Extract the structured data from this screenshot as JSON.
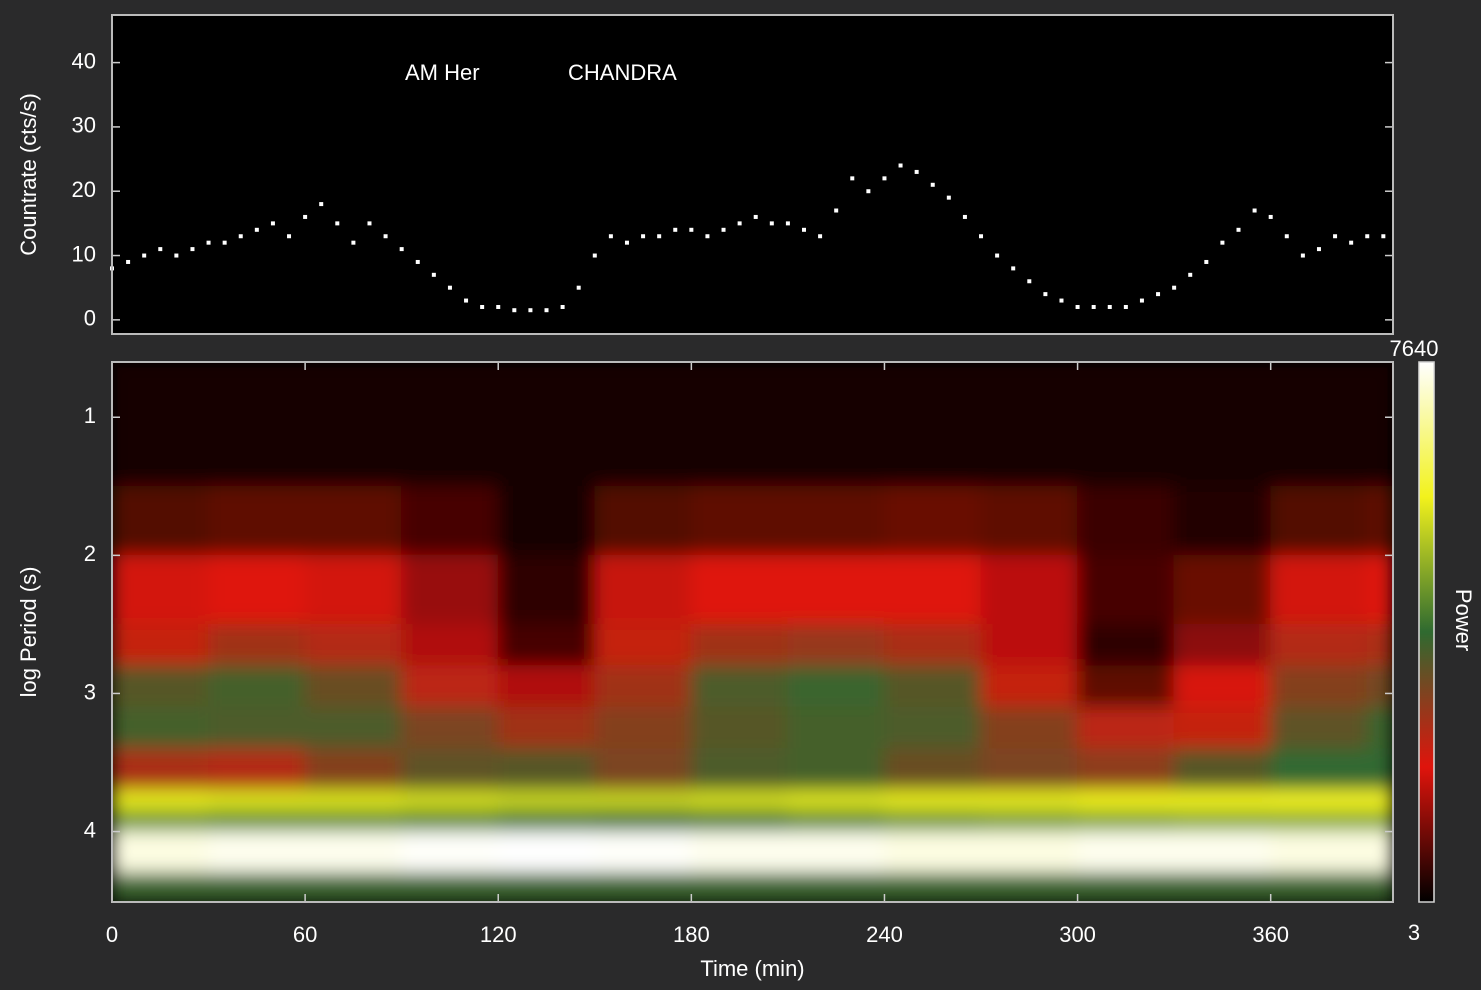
{
  "chart_data": [
    {
      "type": "scatter",
      "ylabel": "Countrate (cts/s)",
      "annotations": [
        "AM Her",
        "CHANDRA"
      ],
      "xlim": [
        0,
        398
      ],
      "ylim": [
        -2.2,
        47.4
      ],
      "yticks": [
        0,
        10,
        20,
        30,
        40
      ],
      "color": "#ffffff",
      "x": [
        0,
        5,
        10,
        15,
        20,
        25,
        30,
        35,
        40,
        45,
        50,
        55,
        60,
        65,
        70,
        75,
        80,
        85,
        90,
        95,
        100,
        105,
        110,
        115,
        120,
        125,
        130,
        135,
        140,
        145,
        150,
        155,
        160,
        165,
        170,
        175,
        180,
        185,
        190,
        195,
        200,
        205,
        210,
        215,
        220,
        225,
        230,
        235,
        240,
        245,
        250,
        255,
        260,
        265,
        270,
        275,
        280,
        285,
        290,
        295,
        300,
        305,
        310,
        315,
        320,
        325,
        330,
        335,
        340,
        345,
        350,
        355,
        360,
        365,
        370,
        375,
        380,
        385,
        390,
        395
      ],
      "values": [
        8,
        9,
        10,
        11,
        10,
        11,
        12,
        12,
        13,
        14,
        15,
        13,
        16,
        18,
        15,
        12,
        15,
        13,
        11,
        9,
        7,
        5,
        3,
        2,
        2,
        1.5,
        1.5,
        1.5,
        2,
        5,
        10,
        13,
        12,
        13,
        13,
        14,
        14,
        13,
        14,
        15,
        16,
        15,
        15,
        14,
        13,
        17,
        22,
        20,
        22,
        24,
        23,
        21,
        19,
        16,
        13,
        10,
        8,
        6,
        4,
        3,
        2,
        2,
        2,
        2,
        3,
        4,
        5,
        7,
        9,
        12,
        14,
        17,
        16,
        13,
        10,
        11,
        13,
        12,
        13,
        13
      ]
    },
    {
      "type": "heatmap",
      "xlabel": "Time (min)",
      "ylabel": "log Period (s)",
      "zlabel": "Power",
      "xlim": [
        0,
        398
      ],
      "xticks": [
        0,
        60,
        120,
        180,
        240,
        300,
        360
      ],
      "ylim": [
        4.51,
        0.6
      ],
      "yticks": [
        1,
        2,
        3,
        4
      ],
      "zlim": [
        3,
        7640
      ],
      "zticks": [
        3,
        7640
      ],
      "colormap": [
        "#000000",
        "#e0140c",
        "#2f6a30",
        "#f2f21c",
        "#ffffff"
      ],
      "x_bins": [
        0,
        30,
        60,
        90,
        120,
        150,
        180,
        210,
        240,
        270,
        300,
        330,
        360,
        390,
        398
      ],
      "y_bins": [
        0.6,
        1.5,
        2.0,
        2.5,
        2.8,
        3.1,
        3.4,
        3.7,
        3.85,
        4.0,
        4.3,
        4.51
      ],
      "z": [
        [
          200,
          200,
          200,
          200,
          200,
          200,
          200,
          200,
          200,
          200,
          200,
          200,
          200,
          200
        ],
        [
          700,
          800,
          800,
          600,
          200,
          700,
          800,
          800,
          900,
          800,
          500,
          300,
          700,
          800
        ],
        [
          1800,
          1900,
          1800,
          1300,
          400,
          1700,
          1900,
          1900,
          1900,
          1600,
          600,
          900,
          1800,
          1900
        ],
        [
          2200,
          2600,
          2400,
          1500,
          600,
          2200,
          2600,
          2700,
          2500,
          1600,
          400,
          1200,
          2400,
          2500
        ],
        [
          3400,
          3600,
          3200,
          2300,
          1500,
          2600,
          3500,
          3700,
          3400,
          2200,
          800,
          2000,
          2900,
          3100
        ],
        [
          3600,
          3500,
          3500,
          3000,
          2600,
          2900,
          3400,
          3600,
          3500,
          2900,
          2300,
          2200,
          3300,
          3700
        ],
        [
          2500,
          2400,
          2900,
          3300,
          3400,
          3000,
          3500,
          3600,
          3200,
          3000,
          2800,
          3400,
          3800,
          3800
        ],
        [
          5600,
          5500,
          5500,
          5400,
          5300,
          5300,
          5400,
          5500,
          5600,
          5600,
          5700,
          5700,
          5800,
          5800
        ],
        [
          4400,
          4300,
          4300,
          4200,
          4000,
          3900,
          4000,
          4200,
          4400,
          4500,
          4600,
          4700,
          4700,
          4700
        ],
        [
          7400,
          7500,
          7500,
          7600,
          7640,
          7600,
          7500,
          7500,
          7400,
          7400,
          7500,
          7500,
          7400,
          7400
        ],
        [
          3700,
          3700,
          3700,
          3700,
          3700,
          3700,
          3700,
          3700,
          3700,
          3700,
          3700,
          3700,
          3700,
          3700
        ]
      ]
    }
  ]
}
